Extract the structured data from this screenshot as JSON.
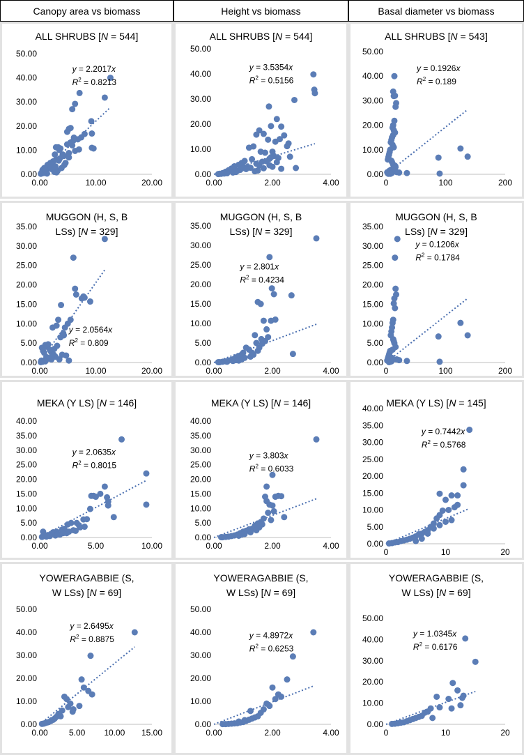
{
  "headers": [
    "Canopy area vs biomass",
    "Height vs biomass",
    "Basal diameter vs biomass"
  ],
  "dot_color": "#5B7DB6",
  "trend_color": "#4A6FB0",
  "chart_data": [
    {
      "type": "scatter",
      "title_pre": "ALL SHRUBS [",
      "title_n": "N",
      "title_post": " = 544]",
      "eq": "y = 2.2017x",
      "r2": "0.8213",
      "slope": 2.2017,
      "xlim": [
        0,
        20
      ],
      "ylim": [
        0,
        50
      ],
      "xticks": [
        "0.00",
        "10.00",
        "20.00"
      ],
      "yticks": [
        "0.00",
        "10.00",
        "20.00",
        "30.00",
        "40.00",
        "50.00"
      ],
      "x": [
        12.6,
        11.6,
        7.1,
        6.3,
        5.8,
        5.5,
        5.2,
        4.9,
        9.2,
        9.3,
        8.0,
        7.4,
        6.8,
        6.0,
        5.5,
        4.9,
        5.8,
        3.3,
        3.7,
        9.6,
        9.3,
        7.0,
        6.3,
        5.2,
        2.7,
        4.3,
        5.2,
        3.6,
        2.9,
        2.4,
        1.9,
        1.4,
        0.8,
        0.5,
        0.3,
        1.6,
        2.1,
        3.2,
        3.9,
        4.4,
        1.1,
        0.7,
        1.3,
        2.6,
        3.0,
        4.6,
        2.3,
        1.9,
        1.5,
        0.9,
        0.4,
        0.2,
        0.6,
        1.0,
        2.8,
        3.4,
        4.1,
        3.5,
        5.6,
        6.1,
        2.9
      ],
      "y": [
        40.0,
        31.8,
        33.7,
        29.2,
        27.0,
        19.2,
        18.8,
        17.6,
        22.0,
        16.9,
        16.7,
        15.3,
        14.5,
        14.0,
        13.2,
        12.4,
        12.0,
        11.2,
        10.7,
        10.7,
        11.0,
        10.3,
        9.7,
        8.8,
        8.2,
        7.6,
        7.0,
        6.6,
        6.0,
        5.4,
        4.7,
        3.9,
        2.6,
        1.8,
        0.6,
        3.0,
        2.2,
        1.5,
        2.6,
        3.9,
        1.2,
        0.5,
        0.3,
        1.0,
        0.8,
        4.7,
        4.0,
        2.6,
        3.0,
        1.4,
        0.4,
        0.2,
        0.9,
        1.8,
        3.3,
        5.7,
        8.2,
        10.0,
        13.0,
        15.2,
        11.2
      ]
    },
    {
      "type": "scatter",
      "title_pre": "ALL SHRUBS [",
      "title_n": "N",
      "title_post": " = 544]",
      "eq": "y = 3.5354x",
      "r2": "0.5156",
      "slope": 3.5354,
      "xlim": [
        0,
        4
      ],
      "ylim": [
        0,
        50
      ],
      "xticks": [
        "0.00",
        "2.00",
        "4.00"
      ],
      "yticks": [
        "0.00",
        "10.00",
        "20.00",
        "30.00",
        "40.00",
        "50.00"
      ],
      "x": [
        3.4,
        3.43,
        3.45,
        2.75,
        2.3,
        1.88,
        2.15,
        1.55,
        1.95,
        1.45,
        1.7,
        1.85,
        2.5,
        2.55,
        2.25,
        2.1,
        2.4,
        2.6,
        2.8,
        1.2,
        1.35,
        1.6,
        1.75,
        2.0,
        1.9,
        2.05,
        1.3,
        1.05,
        0.95,
        0.85,
        0.7,
        0.6,
        0.5,
        0.4,
        0.3,
        0.2,
        0.15,
        1.15,
        1.25,
        1.45,
        1.55,
        1.65,
        1.8,
        2.2,
        0.8,
        0.9,
        1.0,
        1.1,
        0.65,
        0.45,
        0.35,
        0.25,
        1.7,
        1.9,
        2.0,
        1.5,
        1.4,
        2.3,
        2.15,
        1.95,
        0.75
      ],
      "y": [
        39.8,
        33.7,
        32.3,
        29.6,
        19.0,
        27.0,
        22.0,
        17.5,
        19.2,
        15.8,
        16.1,
        13.8,
        11.2,
        12.3,
        14.0,
        13.0,
        15.5,
        7.0,
        2.5,
        10.6,
        11.1,
        9.0,
        8.6,
        9.0,
        6.2,
        7.3,
        6.0,
        5.3,
        4.5,
        3.8,
        3.2,
        2.3,
        1.6,
        1.0,
        0.5,
        0.2,
        0.1,
        3.0,
        2.6,
        4.2,
        3.5,
        5.0,
        5.2,
        6.5,
        1.4,
        1.8,
        2.5,
        2.1,
        0.7,
        0.4,
        0.3,
        0.2,
        2.4,
        3.6,
        3.0,
        1.5,
        1.2,
        2.2,
        4.8,
        6.8,
        0.9
      ]
    },
    {
      "type": "scatter",
      "title_pre": "ALL SHRUBS [",
      "title_n": "N",
      "title_post": " = 543]",
      "eq": "y = 0.1926x",
      "r2": "0.189",
      "slope": 0.1926,
      "xlim": [
        0,
        200
      ],
      "ylim": [
        0,
        50
      ],
      "xticks": [
        "0",
        "100",
        "200"
      ],
      "yticks": [
        "0.00",
        "10.00",
        "20.00",
        "30.00",
        "40.00",
        "50.00"
      ],
      "x": [
        14,
        12,
        15,
        13,
        17,
        16,
        14,
        12,
        11,
        13,
        15,
        12,
        10,
        9,
        8,
        11,
        13,
        7,
        6,
        5,
        4,
        3,
        9,
        10,
        12,
        15,
        16,
        14,
        11,
        8,
        6,
        5,
        2,
        3,
        4,
        125,
        137,
        88,
        90,
        22,
        35,
        18,
        10,
        8,
        7
      ],
      "y": [
        40.0,
        33.7,
        32.0,
        31.9,
        29.0,
        27.5,
        21.8,
        20.0,
        19.0,
        18.0,
        17.0,
        16.0,
        15.0,
        14.0,
        13.0,
        12.0,
        11.0,
        10.0,
        9.0,
        8.0,
        7.0,
        6.0,
        5.5,
        5.0,
        4.0,
        3.5,
        3.0,
        2.5,
        2.2,
        1.8,
        1.5,
        1.0,
        0.8,
        0.4,
        0.2,
        10.5,
        7.2,
        6.8,
        0.3,
        0.7,
        0.5,
        0.9,
        0.6,
        0.3,
        0.2
      ]
    },
    {
      "type": "scatter",
      "title_pre": "MUGGON (H, S, B",
      "title_line2_pre": "LSs) [",
      "title_n": "N",
      "title_post": " = 329]",
      "eq": "y = 2.0564x",
      "r2": "0.809",
      "slope": 2.0564,
      "xlim": [
        0,
        20
      ],
      "ylim": [
        0,
        35
      ],
      "xticks": [
        "0.00",
        "10.00",
        "20.00"
      ],
      "yticks": [
        "0.00",
        "5.00",
        "10.00",
        "15.00",
        "20.00",
        "25.00",
        "30.00",
        "35.00"
      ],
      "x": [
        11.6,
        6.0,
        6.3,
        6.5,
        9.0,
        7.5,
        7.8,
        8.0,
        3.8,
        3.3,
        3.0,
        2.3,
        1.5,
        1.0,
        0.4,
        0.6,
        0.8,
        1.4,
        1.8,
        2.0,
        2.5,
        2.8,
        3.5,
        4.0,
        4.5,
        5.0,
        5.5,
        2.2,
        1.2,
        0.3,
        0.9,
        1.6,
        2.6,
        3.1,
        4.2,
        3.7,
        2.1,
        1.0,
        0.5,
        0.2,
        4.3,
        4.7,
        5.2
      ],
      "y": [
        31.8,
        27.0,
        19.0,
        17.5,
        15.7,
        16.5,
        17.0,
        16.7,
        14.8,
        11.0,
        9.5,
        9.0,
        4.7,
        4.5,
        3.8,
        3.0,
        2.5,
        4.0,
        3.3,
        2.8,
        2.0,
        1.5,
        0.8,
        2.0,
        9.0,
        10.0,
        11.0,
        1.8,
        1.4,
        0.5,
        0.6,
        1.0,
        3.5,
        4.3,
        7.5,
        6.5,
        0.8,
        0.3,
        0.2,
        0.1,
        7.0,
        1.8,
        0.5
      ]
    },
    {
      "type": "scatter",
      "title_pre": "MUGGON (H, S, B",
      "title_line2_pre": "LSs) [",
      "title_n": "N",
      "title_post": " = 329]",
      "eq": "y = 2.801x",
      "r2": "0.4234",
      "slope": 2.801,
      "xlim": [
        0,
        4
      ],
      "ylim": [
        0,
        35
      ],
      "xticks": [
        "0.00",
        "2.00",
        "4.00"
      ],
      "yticks": [
        "0.00",
        "5.00",
        "10.00",
        "15.00",
        "20.00",
        "25.00",
        "30.00",
        "35.00"
      ],
      "x": [
        3.5,
        1.9,
        1.98,
        2.05,
        2.1,
        1.5,
        1.6,
        2.65,
        2.7,
        1.7,
        1.8,
        1.85,
        1.75,
        1.95,
        1.4,
        1.3,
        1.2,
        1.1,
        1.0,
        0.9,
        0.8,
        0.7,
        0.6,
        0.5,
        0.4,
        0.3,
        0.2,
        0.15,
        1.45,
        1.55,
        1.65,
        1.25,
        1.05,
        0.95,
        0.85,
        1.35,
        1.5,
        1.62,
        0.75,
        0.65,
        0.45
      ],
      "y": [
        31.8,
        27.0,
        19.0,
        17.5,
        11.0,
        15.5,
        15.0,
        17.2,
        2.2,
        10.7,
        8.5,
        6.5,
        5.5,
        10.7,
        7.0,
        2.5,
        3.3,
        3.8,
        2.5,
        1.8,
        1.5,
        1.0,
        0.7,
        0.5,
        0.3,
        0.2,
        0.1,
        0.1,
        5.0,
        3.8,
        4.8,
        1.5,
        1.2,
        0.8,
        0.5,
        2.0,
        3.0,
        6.0,
        0.6,
        0.4,
        0.2
      ]
    },
    {
      "type": "scatter",
      "title_pre": "MUGGON (H, S, B",
      "title_line2_pre": "LSs) [",
      "title_n": "N",
      "title_post": " = 329]",
      "eq": "y = 0.1206x",
      "r2": "0.1784",
      "slope": 0.1206,
      "xlim": [
        0,
        200
      ],
      "ylim": [
        0,
        35
      ],
      "xticks": [
        "0",
        "100",
        "200"
      ],
      "yticks": [
        "0.00",
        "5.00",
        "10.00",
        "15.00",
        "20.00",
        "25.00",
        "30.00",
        "35.00"
      ],
      "x": [
        19,
        15,
        16,
        17,
        14,
        13,
        15,
        12,
        11,
        10,
        9,
        8,
        12,
        13,
        14,
        16,
        11,
        7,
        6,
        5,
        4,
        3,
        2,
        8,
        10,
        9,
        125,
        137,
        88,
        90,
        22,
        35,
        18,
        10,
        7,
        5
      ],
      "y": [
        31.8,
        27.0,
        19.0,
        17.5,
        16.5,
        15.2,
        14.0,
        11.0,
        10.2,
        9.0,
        8.0,
        7.0,
        6.0,
        5.5,
        5.0,
        4.0,
        3.3,
        3.0,
        2.5,
        2.0,
        1.5,
        1.0,
        0.5,
        0.8,
        1.2,
        0.3,
        10.2,
        7.0,
        6.7,
        0.2,
        0.6,
        0.4,
        0.8,
        0.5,
        0.2,
        0.1
      ]
    },
    {
      "type": "scatter",
      "title_pre": "MEKA (Y LS) [",
      "title_n": "N",
      "title_post": " = 146]",
      "eq": "y = 2.0635x",
      "r2": "0.8015",
      "slope": 2.0635,
      "xlim": [
        0,
        10
      ],
      "ylim": [
        0,
        40
      ],
      "xticks": [
        "0.00",
        "5.00",
        "10.00"
      ],
      "yticks": [
        "0.00",
        "5.00",
        "10.00",
        "15.00",
        "20.00",
        "25.00",
        "30.00",
        "35.00",
        "40.00"
      ],
      "x": [
        7.3,
        9.5,
        9.5,
        5.8,
        5.4,
        4.8,
        4.6,
        5.0,
        6.0,
        6.1,
        6.1,
        6.6,
        3.9,
        3.3,
        3.5,
        2.8,
        2.5,
        2.2,
        2.0,
        1.5,
        1.0,
        0.7,
        0.4,
        0.2,
        0.3,
        1.2,
        1.8,
        2.4,
        3.0,
        3.6,
        4.0,
        4.5,
        1.4,
        0.9,
        0.6,
        2.6,
        2.1,
        1.6,
        3.2,
        4.2
      ],
      "y": [
        33.7,
        22.0,
        11.3,
        17.5,
        15.0,
        14.3,
        14.3,
        14.0,
        13.8,
        12.3,
        11.0,
        7.0,
        6.2,
        5.0,
        4.2,
        5.0,
        4.5,
        3.0,
        2.7,
        2.0,
        1.2,
        0.8,
        0.5,
        0.2,
        2.0,
        1.8,
        1.0,
        1.5,
        2.5,
        3.5,
        3.7,
        9.8,
        0.7,
        0.5,
        0.3,
        2.0,
        1.5,
        1.1,
        2.3,
        6.3
      ]
    },
    {
      "type": "scatter",
      "title_pre": "MEKA (Y LS) [",
      "title_n": "N",
      "title_post": " = 146]",
      "eq": "y = 3.803x",
      "r2": "0.6033",
      "slope": 3.803,
      "xlim": [
        0,
        4
      ],
      "ylim": [
        0,
        40
      ],
      "xticks": [
        "0.00",
        "2.00",
        "4.00"
      ],
      "yticks": [
        "0.00",
        "5.00",
        "10.00",
        "15.00",
        "20.00",
        "25.00",
        "30.00",
        "35.00",
        "40.00"
      ],
      "x": [
        3.5,
        2.0,
        1.8,
        1.75,
        1.8,
        2.2,
        2.3,
        2.4,
        2.1,
        2.0,
        1.9,
        1.85,
        1.7,
        1.6,
        1.5,
        1.4,
        1.3,
        1.2,
        1.1,
        1.0,
        0.9,
        0.8,
        0.7,
        0.6,
        0.5,
        0.4,
        0.3,
        0.25,
        1.55,
        1.65,
        1.45,
        1.25,
        1.05,
        0.95,
        0.85,
        2.05,
        1.95
      ],
      "y": [
        33.7,
        21.5,
        17.5,
        14.0,
        12.5,
        14.3,
        14.2,
        7.0,
        14.0,
        11.0,
        11.3,
        8.5,
        6.5,
        5.3,
        4.8,
        4.0,
        3.0,
        2.8,
        2.3,
        2.0,
        1.5,
        1.0,
        0.7,
        0.5,
        0.3,
        0.2,
        0.1,
        0.1,
        3.5,
        4.5,
        2.5,
        1.8,
        1.2,
        1.0,
        0.6,
        9.0,
        6.0
      ]
    },
    {
      "type": "scatter",
      "title_pre": "MEKA (Y LS) [",
      "title_n": "N",
      "title_post": " = 145]",
      "eq": "y = 0.7442x",
      "r2": "0.5768",
      "slope": 0.7442,
      "xlim": [
        0,
        20
      ],
      "ylim": [
        0,
        40
      ],
      "xticks": [
        "0",
        "10",
        "20"
      ],
      "yticks": [
        "0.00",
        "5.00",
        "10.00",
        "15.00",
        "20.00",
        "25.00",
        "30.00",
        "35.00",
        "40.00"
      ],
      "x": [
        14,
        13,
        13,
        12,
        11,
        10,
        9,
        12,
        11.5,
        10.5,
        9.5,
        9,
        8.5,
        8,
        7.5,
        7,
        6.5,
        6,
        5.5,
        5,
        4.5,
        4,
        3.5,
        3,
        2.5,
        2,
        1.5,
        1,
        0.5,
        11,
        10,
        9,
        8,
        7,
        6,
        5
      ],
      "y": [
        33.7,
        22.0,
        17.3,
        14.3,
        14.3,
        13.0,
        14.8,
        11.5,
        10.8,
        10.0,
        9.8,
        8.5,
        7.5,
        6.0,
        5.0,
        4.0,
        3.5,
        3.0,
        2.8,
        2.2,
        1.8,
        1.5,
        1.2,
        1.0,
        0.8,
        0.5,
        0.4,
        0.2,
        0.1,
        7.0,
        6.5,
        5.5,
        4.5,
        3.0,
        1.5,
        0.8
      ]
    },
    {
      "type": "scatter",
      "title_pre": "YOWERAGABBIE (S,",
      "title_line2_pre": "W LSs) [",
      "title_n": "N",
      "title_post": " = 69]",
      "eq": "y = 2.6495x",
      "r2": "0.8875",
      "slope": 2.6495,
      "xlim": [
        0,
        15
      ],
      "ylim": [
        0,
        50
      ],
      "xticks": [
        "0.00",
        "5.00",
        "10.00",
        "15.00"
      ],
      "yticks": [
        "0.00",
        "10.00",
        "20.00",
        "30.00",
        "40.00",
        "50.00"
      ],
      "x": [
        12.7,
        6.8,
        5.6,
        5.9,
        6.5,
        7.0,
        3.3,
        3.6,
        4.1,
        3.8,
        4.5,
        3.0,
        2.5,
        2.2,
        2.0,
        1.8,
        1.5,
        1.2,
        1.0,
        0.7,
        0.5,
        0.3,
        5.3,
        4.4,
        2.8,
        1.6
      ],
      "y": [
        40.0,
        29.8,
        19.5,
        16.0,
        14.5,
        13.0,
        12.0,
        11.0,
        9.0,
        7.5,
        6.5,
        6.0,
        4.5,
        3.2,
        2.5,
        2.0,
        1.5,
        1.0,
        0.8,
        0.5,
        0.3,
        0.2,
        8.0,
        5.5,
        3.5,
        1.8
      ]
    },
    {
      "type": "scatter",
      "title_pre": "YOWERAGABBIE (S,",
      "title_line2_pre": "W LSs) [",
      "title_n": "N",
      "title_post": " = 69]",
      "eq": "y = 4.8972x",
      "r2": "0.6253",
      "slope": 4.8972,
      "xlim": [
        0,
        4
      ],
      "ylim": [
        0,
        50
      ],
      "xticks": [
        "0.00",
        "2.00",
        "4.00"
      ],
      "yticks": [
        "0.00",
        "10.00",
        "20.00",
        "30.00",
        "40.00",
        "50.00"
      ],
      "x": [
        3.4,
        2.7,
        2.5,
        2.0,
        2.2,
        2.3,
        2.1,
        1.9,
        1.8,
        1.7,
        1.6,
        1.5,
        1.4,
        1.3,
        1.2,
        1.1,
        1.0,
        0.9,
        0.8,
        0.7,
        0.6,
        0.5,
        0.4,
        0.3,
        1.25,
        1.05,
        0.85
      ],
      "y": [
        40.0,
        29.5,
        19.5,
        16.0,
        13.0,
        12.0,
        11.0,
        8.0,
        9.0,
        6.5,
        5.0,
        3.5,
        3.0,
        2.5,
        2.0,
        1.5,
        1.0,
        0.8,
        0.5,
        0.4,
        0.3,
        0.2,
        0.1,
        0.1,
        5.8,
        1.8,
        1.2
      ]
    },
    {
      "type": "scatter",
      "title_pre": "YOWERAGABBIE (S,",
      "title_line2_pre": "W LSs) [",
      "title_n": "N",
      "title_post": " = 69]",
      "eq": "y = 1.0345x",
      "r2": "0.6176",
      "slope": 1.0345,
      "xlim": [
        0,
        20
      ],
      "ylim": [
        0,
        50
      ],
      "xticks": [
        "0",
        "10",
        "20"
      ],
      "yticks": [
        "0.00",
        "10.00",
        "20.00",
        "30.00",
        "40.00",
        "50.00"
      ],
      "x": [
        13.3,
        15.0,
        11.2,
        12.0,
        13.0,
        12.5,
        8.5,
        10.5,
        7.5,
        7.0,
        6.5,
        6.0,
        5.5,
        5.0,
        4.5,
        4.0,
        3.5,
        3.0,
        2.5,
        2.0,
        1.5,
        1.0,
        7.8,
        9.0,
        11.0,
        12.8
      ],
      "y": [
        40.5,
        29.5,
        19.5,
        16.0,
        13.5,
        9.0,
        13.0,
        12.0,
        7.5,
        6.0,
        5.5,
        4.0,
        3.5,
        3.0,
        2.5,
        2.0,
        1.5,
        1.0,
        0.8,
        0.5,
        0.3,
        0.2,
        3.0,
        8.0,
        7.5,
        12.5
      ]
    }
  ]
}
